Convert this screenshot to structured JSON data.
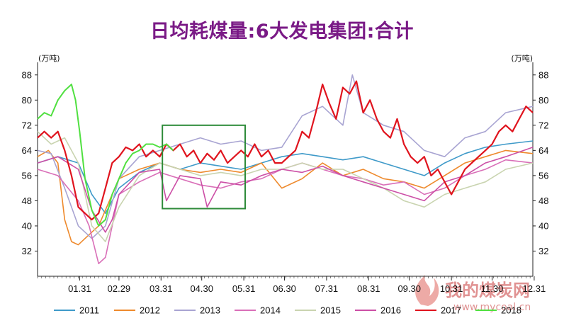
{
  "chart_data": {
    "type": "line",
    "title": "日均耗煤量:6大发电集团:合计",
    "ylabel_left": "(万吨)",
    "ylabel_right": "(万吨)",
    "ylim": [
      24,
      92
    ],
    "yticks": [
      32,
      40,
      48,
      56,
      64,
      72,
      80,
      88
    ],
    "x_range": [
      0,
      365
    ],
    "x_ticks": [
      {
        "label": "01.31",
        "day": 31
      },
      {
        "label": "02.29",
        "day": 60
      },
      {
        "label": "03.31",
        "day": 91
      },
      {
        "label": "04.30",
        "day": 121
      },
      {
        "label": "05.31",
        "day": 152
      },
      {
        "label": "06.30",
        "day": 182
      },
      {
        "label": "07.31",
        "day": 213
      },
      {
        "label": "08.31",
        "day": 244
      },
      {
        "label": "09.30",
        "day": 274
      },
      {
        "label": "10.31",
        "day": 305
      },
      {
        "label": "11.30",
        "day": 335
      },
      {
        "label": "12.31",
        "day": 366
      }
    ],
    "grid": false,
    "legend_position": "bottom",
    "highlight_box": {
      "x_from": 92,
      "x_to": 153,
      "y_from": 45.5,
      "y_to": 72
    },
    "series": [
      {
        "name": "2011",
        "color": "#3f9ac9",
        "x": [
          0,
          15,
          30,
          40,
          50,
          60,
          75,
          90,
          105,
          120,
          135,
          150,
          165,
          180,
          195,
          210,
          225,
          240,
          255,
          270,
          285,
          300,
          315,
          330,
          345,
          365
        ],
        "y": [
          60,
          62,
          60,
          50,
          44,
          52,
          57,
          60,
          58,
          60,
          59,
          58,
          60,
          62,
          63,
          62,
          61,
          62,
          60,
          58,
          56,
          60,
          63,
          65,
          66,
          67
        ]
      },
      {
        "name": "2012",
        "color": "#ee8a2d",
        "x": [
          0,
          8,
          15,
          20,
          25,
          30,
          35,
          45,
          55,
          60,
          75,
          90,
          105,
          120,
          135,
          150,
          165,
          180,
          195,
          210,
          225,
          240,
          255,
          270,
          285,
          300,
          315,
          330,
          345,
          365
        ],
        "y": [
          62,
          64,
          60,
          42,
          35,
          34,
          36,
          40,
          50,
          55,
          58,
          60,
          58,
          57,
          58,
          57,
          60,
          52,
          55,
          60,
          56,
          58,
          55,
          54,
          52,
          56,
          60,
          62,
          64,
          63
        ]
      },
      {
        "name": "2013",
        "color": "#a8a4d2",
        "x": [
          0,
          10,
          20,
          30,
          40,
          50,
          60,
          75,
          90,
          105,
          120,
          135,
          150,
          165,
          180,
          195,
          210,
          225,
          232,
          240,
          255,
          270,
          285,
          300,
          315,
          330,
          345,
          365
        ],
        "y": [
          64,
          63,
          52,
          40,
          36,
          40,
          55,
          62,
          64,
          66,
          68,
          66,
          67,
          64,
          65,
          75,
          78,
          72,
          88,
          76,
          72,
          70,
          64,
          62,
          68,
          70,
          76,
          78
        ]
      },
      {
        "name": "2014",
        "color": "#d96fb8",
        "x": [
          0,
          15,
          30,
          38,
          45,
          50,
          55,
          60,
          75,
          90,
          105,
          120,
          135,
          150,
          165,
          180,
          195,
          210,
          225,
          240,
          255,
          270,
          285,
          300,
          315,
          330,
          345,
          365
        ],
        "y": [
          58,
          56,
          48,
          40,
          28,
          30,
          40,
          50,
          54,
          57,
          55,
          53,
          52,
          54,
          55,
          58,
          60,
          58,
          56,
          55,
          53,
          54,
          50,
          52,
          56,
          58,
          61,
          60
        ]
      },
      {
        "name": "2015",
        "color": "#c9d4b0",
        "x": [
          0,
          10,
          20,
          30,
          40,
          50,
          60,
          75,
          90,
          105,
          120,
          135,
          150,
          165,
          180,
          195,
          210,
          225,
          240,
          255,
          270,
          285,
          300,
          315,
          330,
          345,
          365
        ],
        "y": [
          70,
          66,
          68,
          60,
          40,
          35,
          46,
          56,
          60,
          58,
          56,
          57,
          56,
          58,
          58,
          60,
          58,
          58,
          55,
          52,
          48,
          46,
          50,
          52,
          54,
          58,
          60
        ]
      },
      {
        "name": "2016",
        "color": "#cc4fa6",
        "x": [
          0,
          15,
          30,
          40,
          50,
          55,
          60,
          75,
          90,
          95,
          105,
          120,
          125,
          135,
          150,
          165,
          180,
          195,
          210,
          225,
          240,
          255,
          270,
          285,
          300,
          315,
          330,
          345,
          365
        ],
        "y": [
          60,
          62,
          58,
          45,
          38,
          42,
          50,
          57,
          58,
          48,
          56,
          55,
          46,
          54,
          53,
          56,
          58,
          57,
          59,
          56,
          54,
          52,
          50,
          48,
          54,
          56,
          60,
          62,
          65
        ]
      },
      {
        "name": "2017",
        "color": "#e0141e",
        "x": [
          0,
          5,
          10,
          15,
          20,
          25,
          30,
          35,
          40,
          45,
          50,
          55,
          60,
          65,
          70,
          75,
          80,
          85,
          90,
          95,
          100,
          105,
          110,
          115,
          120,
          125,
          130,
          135,
          140,
          145,
          150,
          155,
          160,
          165,
          170,
          175,
          180,
          185,
          190,
          195,
          200,
          205,
          210,
          215,
          220,
          225,
          230,
          235,
          240,
          245,
          250,
          255,
          260,
          265,
          270,
          275,
          280,
          285,
          290,
          295,
          300,
          305,
          310,
          315,
          320,
          325,
          330,
          335,
          340,
          345,
          350,
          355,
          360,
          365
        ],
        "y": [
          68,
          70,
          68,
          70,
          64,
          56,
          46,
          44,
          42,
          44,
          52,
          60,
          62,
          65,
          64,
          66,
          62,
          64,
          62,
          66,
          64,
          66,
          62,
          64,
          60,
          63,
          61,
          64,
          60,
          62,
          64,
          62,
          66,
          62,
          64,
          60,
          60,
          62,
          64,
          70,
          68,
          76,
          85,
          79,
          74,
          84,
          82,
          86,
          76,
          80,
          74,
          70,
          68,
          74,
          66,
          62,
          60,
          62,
          56,
          58,
          54,
          50,
          54,
          58,
          60,
          62,
          64,
          66,
          70,
          72,
          70,
          74,
          78,
          76
        ]
      },
      {
        "name": "2018",
        "color": "#50e040",
        "x": [
          0,
          5,
          10,
          15,
          20,
          25,
          28,
          31,
          35,
          40,
          45,
          50,
          55,
          60,
          65,
          70,
          75,
          80,
          85,
          90,
          95,
          100
        ],
        "y": [
          74,
          76,
          75,
          80,
          83,
          85,
          80,
          70,
          55,
          45,
          40,
          42,
          50,
          55,
          60,
          63,
          64,
          66,
          66,
          65,
          66,
          64
        ]
      }
    ]
  },
  "watermark": {
    "text": "我的煤炭网",
    "url": "www.mycoal.cn"
  }
}
